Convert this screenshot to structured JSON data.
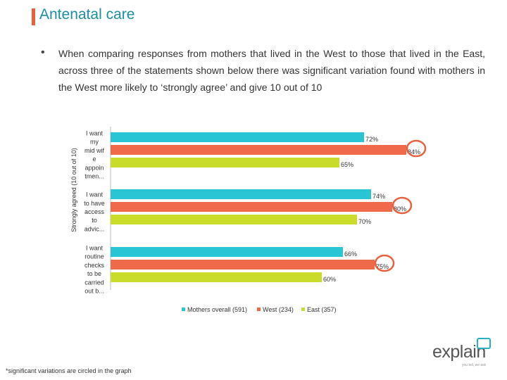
{
  "header": {
    "title": "Antenatal care"
  },
  "bullet": {
    "text": "When comparing responses from mothers that lived in the West to those that lived in the East, across three of the statements shown below there was significant variation found with mothers in the West more likely to ‘strongly agree’ and give 10 out of 10"
  },
  "chart_data": {
    "type": "bar",
    "orientation": "horizontal",
    "ylabel": "Strongly agreed (10 out of 10)",
    "categories": [
      "I want my midwife appointmen...",
      "I want to have access to advic...",
      "I want routine checks to be carried out b..."
    ],
    "category_lines": [
      [
        "I want",
        "my",
        "mid wif",
        "e",
        "appoin",
        "tmen..."
      ],
      [
        "I want",
        "to have",
        "access",
        "to",
        "advic..."
      ],
      [
        "I want",
        "routine",
        "checks",
        "to be",
        "carried",
        "out b..."
      ]
    ],
    "series": [
      {
        "name": "Mothers overall (591)",
        "color": "#29c5d4",
        "values": [
          72,
          74,
          66
        ],
        "labels": [
          "72%",
          "74%",
          "66%"
        ]
      },
      {
        "name": "West (234)",
        "color": "#f0694a",
        "values": [
          84,
          80,
          75
        ],
        "labels": [
          "84%",
          "80%",
          "75%"
        ]
      },
      {
        "name": "East (357)",
        "color": "#c9dc2a",
        "values": [
          65,
          70,
          60
        ],
        "labels": [
          "65%",
          "70%",
          "60%"
        ]
      }
    ],
    "xlim": [
      0,
      100
    ],
    "significant_series": "West (234)",
    "highlight_color": "#e8603c",
    "legend_position": "bottom"
  },
  "footnote": "*significant variations are circled in the graph",
  "logo": {
    "word": "explain",
    "tagline": "you tell, we ask"
  }
}
